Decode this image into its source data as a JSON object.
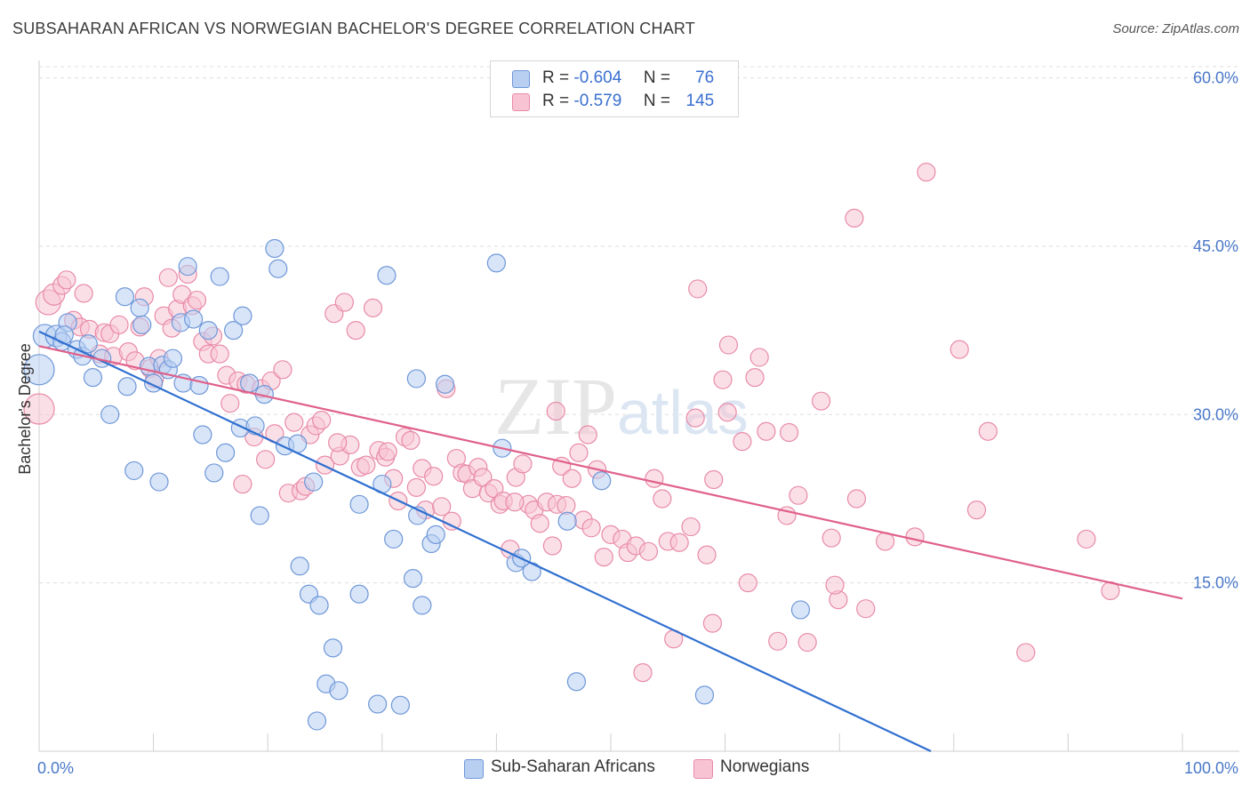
{
  "title": "SUBSAHARAN AFRICAN VS NORWEGIAN BACHELOR'S DEGREE CORRELATION CHART",
  "source": "Source: ZipAtlas.com",
  "watermark": "ZIPatlas",
  "legend": {
    "rows": [
      {
        "r_label": "R =",
        "r_value": "-0.604",
        "n_label": "N =",
        "n_value": "76"
      },
      {
        "r_label": "R =",
        "r_value": "-0.579",
        "n_label": "N =",
        "n_value": "145"
      }
    ]
  },
  "colors": {
    "blue_fill": "#b8cff2",
    "blue_stroke": "#6e97d8",
    "blue_line": "#3070d0",
    "pink_fill": "#f8c4d4",
    "pink_stroke": "#e88aa8",
    "pink_line": "#e0608a",
    "grid": "#dddddd",
    "tick_text": "#4a78c8"
  },
  "chart_data": {
    "type": "scatter",
    "title": "SUBSAHARAN AFRICAN VS NORWEGIAN BACHELOR'S DEGREE CORRELATION CHART",
    "xlabel": "",
    "ylabel": "Bachelor's Degree",
    "xlim": [
      0,
      100
    ],
    "ylim": [
      0,
      61
    ],
    "x_tick_labels": [
      "0.0%",
      "100.0%"
    ],
    "y_ticks": [
      15,
      30,
      45,
      60
    ],
    "y_tick_labels": [
      "15.0%",
      "30.0%",
      "45.0%",
      "60.0%"
    ],
    "grid": true,
    "legend_position": "top-center",
    "series": [
      {
        "name": "Sub-Saharan Africans",
        "color": "#6e97d8",
        "R": -0.604,
        "N": 76,
        "trend": {
          "x0": 0,
          "y0": 37.4,
          "x1": 78,
          "y1": 0
        },
        "points": [
          [
            0,
            34,
            1.7
          ],
          [
            0.5,
            37,
            1.3
          ],
          [
            1.5,
            37,
            1.2
          ],
          [
            2,
            36.5,
            1
          ],
          [
            2.5,
            38.2,
            1
          ],
          [
            3.3,
            35.8,
            1
          ],
          [
            3.8,
            35.2,
            1
          ],
          [
            4.3,
            36.3,
            1
          ],
          [
            4.7,
            33.3,
            1
          ],
          [
            5.5,
            35,
            1
          ],
          [
            6.2,
            30,
            1
          ],
          [
            7.5,
            40.5,
            1
          ],
          [
            7.7,
            32.5,
            1
          ],
          [
            8.3,
            25,
            1
          ],
          [
            8.8,
            39.5,
            1
          ],
          [
            9,
            38,
            1
          ],
          [
            9.6,
            34.3,
            1
          ],
          [
            10,
            32.8,
            1
          ],
          [
            10.5,
            24,
            1
          ],
          [
            10.8,
            34.4,
            1
          ],
          [
            11.3,
            34,
            1
          ],
          [
            11.7,
            35,
            1
          ],
          [
            12.4,
            38.2,
            1
          ],
          [
            12.6,
            32.8,
            1
          ],
          [
            13,
            43.2,
            1
          ],
          [
            13.5,
            38.5,
            1
          ],
          [
            14,
            32.6,
            1
          ],
          [
            14.3,
            28.2,
            1
          ],
          [
            14.8,
            37.5,
            1
          ],
          [
            15.3,
            24.8,
            1
          ],
          [
            15.8,
            42.3,
            1
          ],
          [
            16.3,
            26.6,
            1
          ],
          [
            17,
            37.5,
            1
          ],
          [
            17.6,
            28.8,
            1
          ],
          [
            17.8,
            38.8,
            1
          ],
          [
            18.4,
            32.8,
            1
          ],
          [
            18.9,
            29,
            1
          ],
          [
            19.3,
            21,
            1
          ],
          [
            19.7,
            31.8,
            1
          ],
          [
            20.6,
            44.8,
            1
          ],
          [
            20.9,
            43,
            1
          ],
          [
            21.5,
            27.2,
            1
          ],
          [
            22.6,
            27.4,
            1
          ],
          [
            22.8,
            16.5,
            1
          ],
          [
            23.6,
            14,
            1
          ],
          [
            24,
            24,
            1
          ],
          [
            24.5,
            13,
            1
          ],
          [
            24.3,
            2.7,
            1
          ],
          [
            25.1,
            6,
            1
          ],
          [
            25.7,
            9.2,
            1
          ],
          [
            26.2,
            5.4,
            1
          ],
          [
            28,
            22,
            1
          ],
          [
            28,
            14,
            1
          ],
          [
            29.6,
            4.2,
            1
          ],
          [
            30,
            23.8,
            1
          ],
          [
            30.4,
            42.4,
            1
          ],
          [
            31,
            18.9,
            1
          ],
          [
            31.6,
            4.1,
            1
          ],
          [
            32.7,
            15.4,
            1
          ],
          [
            33,
            33.2,
            1
          ],
          [
            33.1,
            21,
            1
          ],
          [
            33.5,
            13,
            1
          ],
          [
            34.3,
            18.5,
            1
          ],
          [
            34.7,
            19.3,
            1
          ],
          [
            35.5,
            32.7,
            1
          ],
          [
            40,
            43.5,
            1
          ],
          [
            40.5,
            27,
            1
          ],
          [
            41.7,
            16.8,
            1
          ],
          [
            42.2,
            17.2,
            1
          ],
          [
            43.1,
            16,
            1
          ],
          [
            46.2,
            20.5,
            1
          ],
          [
            47,
            6.2,
            1
          ],
          [
            49.2,
            24.1,
            1
          ],
          [
            58.2,
            5,
            1
          ],
          [
            66.6,
            12.6,
            1
          ],
          [
            2.2,
            37.1,
            1
          ]
        ]
      },
      {
        "name": "Norwegians",
        "color": "#e88aa8",
        "R": -0.579,
        "N": 145,
        "trend": {
          "x0": 0,
          "y0": 36.1,
          "x1": 100,
          "y1": 13.6
        },
        "points": [
          [
            0,
            30.5,
            1.7
          ],
          [
            0.8,
            40,
            1.4
          ],
          [
            1.3,
            40.7,
            1.2
          ],
          [
            2,
            41.5,
            1
          ],
          [
            2.4,
            42,
            1
          ],
          [
            3,
            38.4,
            1
          ],
          [
            3.6,
            37.8,
            1
          ],
          [
            3.9,
            40.8,
            1
          ],
          [
            4.4,
            37.6,
            1
          ],
          [
            5.3,
            35.4,
            1
          ],
          [
            5.7,
            37.3,
            1
          ],
          [
            6.2,
            37.2,
            1
          ],
          [
            6.5,
            35.2,
            1
          ],
          [
            7,
            38,
            1
          ],
          [
            7.8,
            35.6,
            1
          ],
          [
            8.4,
            34.8,
            1
          ],
          [
            8.8,
            37.8,
            1
          ],
          [
            9.2,
            40.5,
            1
          ],
          [
            9.7,
            34.1,
            1
          ],
          [
            10.1,
            33.2,
            1
          ],
          [
            10.5,
            35,
            1
          ],
          [
            10.9,
            38.8,
            1
          ],
          [
            11.3,
            42.2,
            1
          ],
          [
            11.6,
            37.7,
            1
          ],
          [
            12.1,
            39.4,
            1
          ],
          [
            12.5,
            40.7,
            1
          ],
          [
            13,
            42.5,
            1
          ],
          [
            13.4,
            39.7,
            1
          ],
          [
            13.8,
            40.2,
            1
          ],
          [
            14.3,
            36.5,
            1
          ],
          [
            14.8,
            35.4,
            1
          ],
          [
            15.2,
            37,
            1
          ],
          [
            15.8,
            35.4,
            1
          ],
          [
            16.4,
            33.5,
            1
          ],
          [
            16.7,
            31,
            1
          ],
          [
            17.4,
            33,
            1
          ],
          [
            17.8,
            23.8,
            1
          ],
          [
            18.1,
            32.7,
            1
          ],
          [
            18.8,
            28,
            1
          ],
          [
            19.4,
            32.3,
            1
          ],
          [
            19.8,
            26,
            1
          ],
          [
            20.3,
            33,
            1
          ],
          [
            20.6,
            28.3,
            1
          ],
          [
            21.3,
            34,
            1
          ],
          [
            21.8,
            23,
            1
          ],
          [
            22.3,
            29.3,
            1
          ],
          [
            22.9,
            23.2,
            1
          ],
          [
            23.3,
            23.6,
            1
          ],
          [
            23.7,
            28.2,
            1
          ],
          [
            24.2,
            29,
            1
          ],
          [
            24.7,
            29.5,
            1
          ],
          [
            25,
            25.5,
            1
          ],
          [
            25.8,
            39,
            1
          ],
          [
            26.3,
            26.3,
            1
          ],
          [
            26.7,
            40,
            1
          ],
          [
            27.2,
            27.3,
            1
          ],
          [
            27.7,
            37.5,
            1
          ],
          [
            28.1,
            25.3,
            1
          ],
          [
            28.6,
            25.5,
            1
          ],
          [
            29.2,
            39.5,
            1
          ],
          [
            29.7,
            26.8,
            1
          ],
          [
            30.3,
            26.2,
            1
          ],
          [
            30.5,
            26.7,
            1
          ],
          [
            31,
            24.3,
            1
          ],
          [
            31.4,
            22.3,
            1
          ],
          [
            32,
            28,
            1
          ],
          [
            32.5,
            27.7,
            1
          ],
          [
            33,
            23.5,
            1
          ],
          [
            33.5,
            25.2,
            1
          ],
          [
            33.8,
            21.5,
            1
          ],
          [
            34.5,
            24.5,
            1
          ],
          [
            35.2,
            21.8,
            1
          ],
          [
            35.6,
            32.3,
            1
          ],
          [
            36.1,
            20.5,
            1
          ],
          [
            36.5,
            26.1,
            1
          ],
          [
            37,
            24.8,
            1
          ],
          [
            37.4,
            24.7,
            1
          ],
          [
            37.9,
            23.4,
            1
          ],
          [
            38.4,
            25.3,
            1
          ],
          [
            38.8,
            24.4,
            1
          ],
          [
            39.3,
            23,
            1
          ],
          [
            39.8,
            23.4,
            1
          ],
          [
            40.3,
            22,
            1
          ],
          [
            40.6,
            22.3,
            1
          ],
          [
            41.2,
            18,
            1
          ],
          [
            41.7,
            24.4,
            1
          ],
          [
            42.3,
            25.6,
            1
          ],
          [
            42.8,
            22,
            1
          ],
          [
            43.3,
            21.5,
            1
          ],
          [
            43.8,
            20.3,
            1
          ],
          [
            44.4,
            22.2,
            1
          ],
          [
            44.9,
            18.3,
            1
          ],
          [
            45.3,
            22,
            1
          ],
          [
            45.7,
            25.4,
            1
          ],
          [
            46.1,
            21.9,
            1
          ],
          [
            46.6,
            24.3,
            1
          ],
          [
            47.2,
            26.6,
            1
          ],
          [
            47.6,
            20.6,
            1
          ],
          [
            48.3,
            19.9,
            1
          ],
          [
            48.8,
            25.1,
            1
          ],
          [
            49.4,
            17.3,
            1
          ],
          [
            50,
            19.3,
            1
          ],
          [
            51,
            18.9,
            1
          ],
          [
            51.5,
            17.7,
            1
          ],
          [
            52.2,
            18.3,
            1
          ],
          [
            52.8,
            7,
            1
          ],
          [
            53.3,
            17.8,
            1
          ],
          [
            53.8,
            24.3,
            1
          ],
          [
            54.5,
            22.5,
            1
          ],
          [
            55,
            18.7,
            1
          ],
          [
            55.5,
            10,
            1
          ],
          [
            56,
            18.6,
            1
          ],
          [
            57,
            20,
            1
          ],
          [
            57.4,
            29.7,
            1
          ],
          [
            58.4,
            17.5,
            1
          ],
          [
            59,
            24.2,
            1
          ],
          [
            60.3,
            36.2,
            1
          ],
          [
            61.5,
            27.6,
            1
          ],
          [
            62,
            15,
            1
          ],
          [
            63,
            35.1,
            1
          ],
          [
            63.6,
            28.5,
            1
          ],
          [
            64.6,
            9.8,
            1
          ],
          [
            65.4,
            21,
            1
          ],
          [
            66.4,
            22.8,
            1
          ],
          [
            67.2,
            9.7,
            1
          ],
          [
            68.4,
            31.2,
            1
          ],
          [
            69.3,
            19,
            1
          ],
          [
            69.9,
            13.5,
            1
          ],
          [
            71.3,
            47.5,
            1
          ],
          [
            71.5,
            22.5,
            1
          ],
          [
            77.6,
            51.6,
            1
          ],
          [
            80.5,
            35.8,
            1
          ],
          [
            82,
            21.5,
            1
          ],
          [
            83,
            28.5,
            1
          ],
          [
            86.3,
            8.8,
            1
          ],
          [
            91.6,
            18.9,
            1
          ],
          [
            93.7,
            14.3,
            1
          ],
          [
            57.6,
            41.2,
            1
          ],
          [
            48,
            28.2,
            1
          ],
          [
            60.2,
            30.2,
            1
          ],
          [
            65.6,
            28.4,
            1
          ],
          [
            69.6,
            14.8,
            1
          ],
          [
            74,
            18.7,
            1
          ],
          [
            76.6,
            19.1,
            1
          ],
          [
            41.6,
            22.2,
            1
          ],
          [
            45.2,
            30.3,
            1
          ],
          [
            58.9,
            11.4,
            1
          ],
          [
            59.8,
            33.1,
            1
          ],
          [
            62.6,
            33.3,
            1
          ],
          [
            72.3,
            12.7,
            1
          ],
          [
            26.1,
            27.5,
            1
          ]
        ]
      }
    ]
  },
  "bottom_legend": [
    {
      "label": "Sub-Saharan Africans"
    },
    {
      "label": "Norwegians"
    }
  ]
}
